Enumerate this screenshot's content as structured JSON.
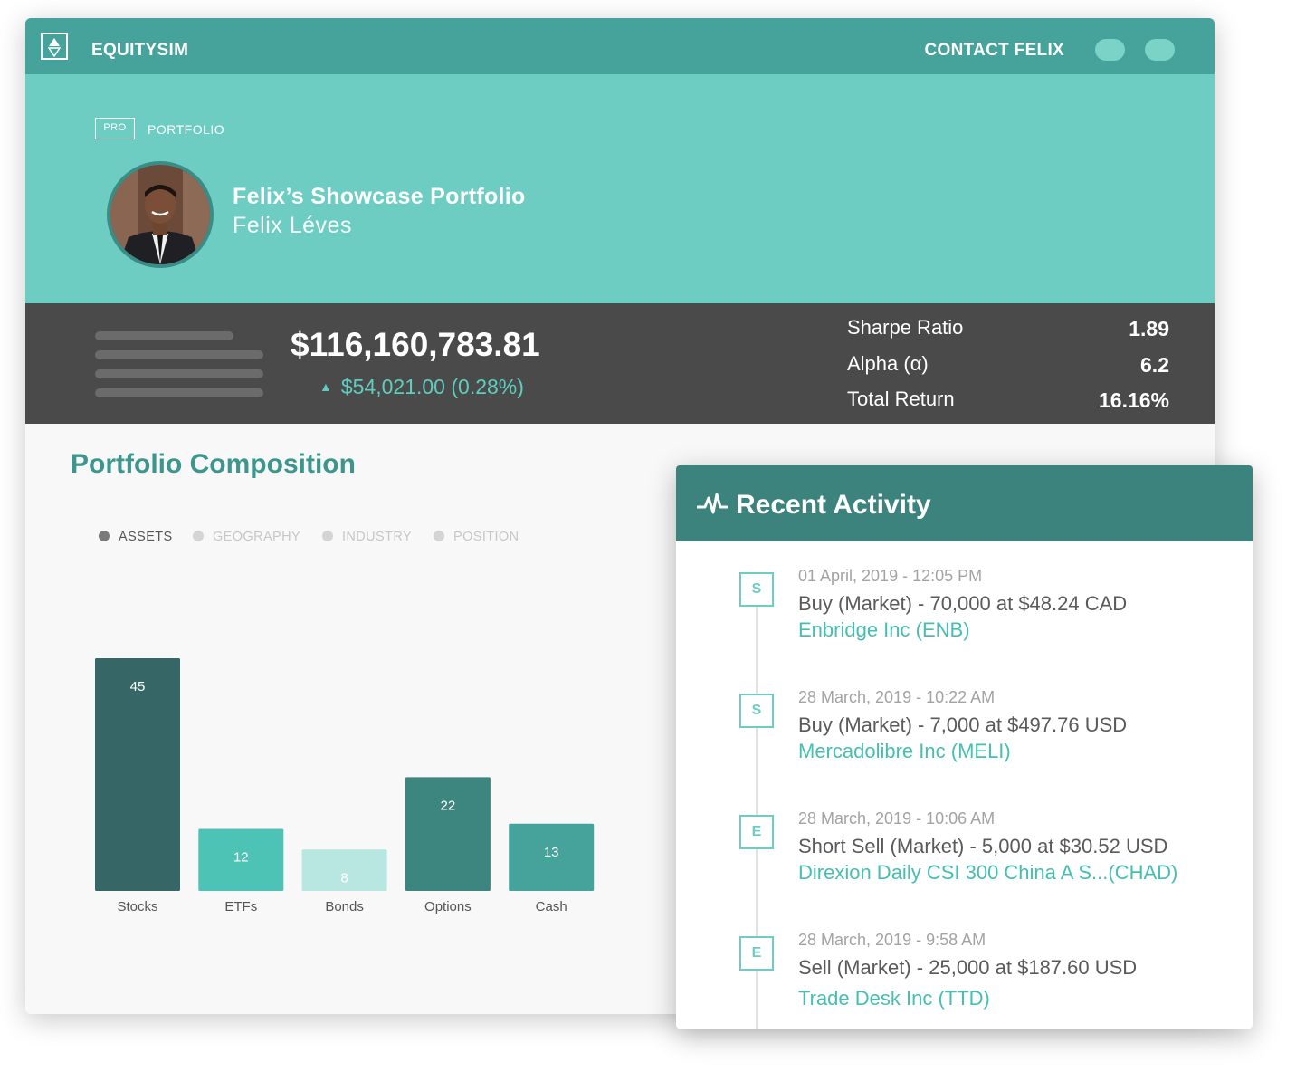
{
  "header": {
    "brand": "EQUITYSIM",
    "contact_label": "CONTACT FELIX",
    "logo_icon": "equitysim-logo-icon"
  },
  "hero": {
    "badge": "PRO",
    "crumb": "PORTFOLIO",
    "title": "Felix’s Showcase Portfolio",
    "owner": "Felix Léves"
  },
  "stats": {
    "value": "$116,160,783.81",
    "change": "$54,021.00 (0.28%)",
    "metrics": [
      {
        "label": "Sharpe Ratio",
        "value": "1.89"
      },
      {
        "label": "Alpha (α)",
        "value": "6.2"
      },
      {
        "label": "Total Return",
        "value": "16.16%"
      }
    ]
  },
  "composition": {
    "title": "Portfolio Composition",
    "tabs": [
      {
        "label": "ASSETS",
        "active": true
      },
      {
        "label": "GEOGRAPHY",
        "active": false
      },
      {
        "label": "INDUSTRY",
        "active": false
      },
      {
        "label": "POSITION",
        "active": false
      }
    ]
  },
  "chart_data": {
    "type": "bar",
    "categories": [
      "Stocks",
      "ETFs",
      "Bonds",
      "Options",
      "Cash"
    ],
    "values": [
      45,
      12,
      8,
      22,
      13
    ],
    "colors": [
      "#366766",
      "#4dc3b5",
      "#b8e6e0",
      "#3d857f",
      "#45a39b"
    ],
    "title": "",
    "xlabel": "",
    "ylabel": "",
    "ylim": [
      0,
      45
    ],
    "grid": false
  },
  "activity": {
    "title": "Recent Activity",
    "icon": "pulse-icon",
    "items": [
      {
        "badge": "S",
        "date": "01 April, 2019 - 12:05 PM",
        "desc": "Buy (Market) - 70,000 at $48.24 CAD",
        "security": "Enbridge Inc (ENB)"
      },
      {
        "badge": "S",
        "date": "28 March, 2019 - 10:22 AM",
        "desc": "Buy (Market) - 7,000 at $497.76 USD",
        "security": "Mercadolibre Inc (MELI)"
      },
      {
        "badge": "E",
        "date": "28 March, 2019 - 10:06 AM",
        "desc": "Short Sell (Market) - 5,000 at $30.52 USD",
        "security": "Direxion Daily CSI 300 China A S...(CHAD)"
      },
      {
        "badge": "E",
        "date": "28 March, 2019 - 9:58 AM",
        "desc": "Sell (Market) - 25,000 at $187.60 USD",
        "security": "Trade Desk Inc (TTD)"
      }
    ]
  }
}
